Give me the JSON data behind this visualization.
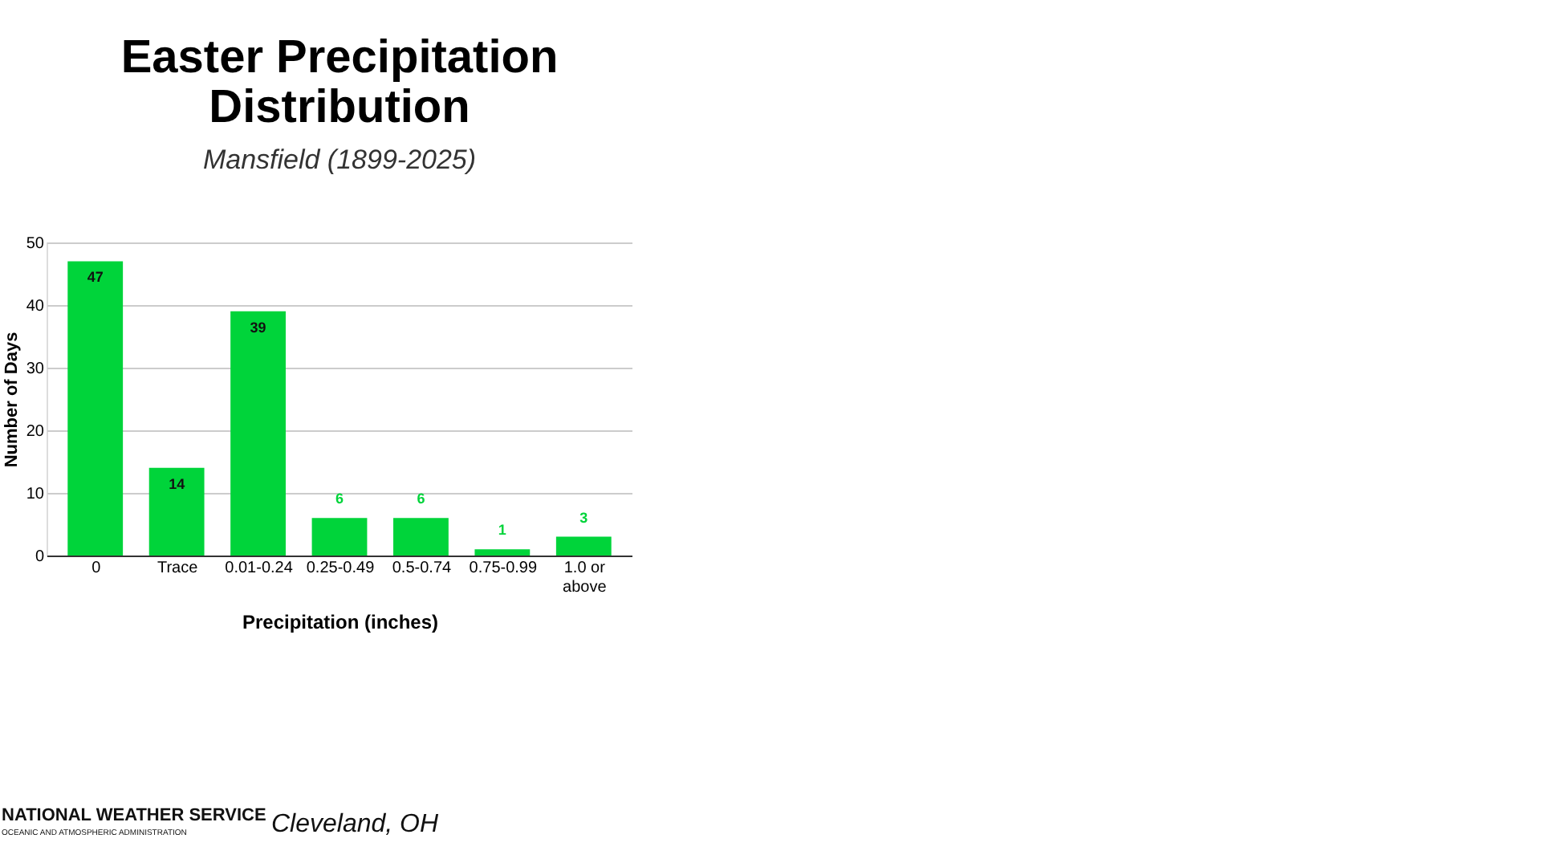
{
  "chart_data": {
    "type": "bar",
    "title": [
      "Easter Precipitation",
      "Distribution"
    ],
    "subtitle": "Mansfield (1899-2025)",
    "xlabel": "Precipitation (inches)",
    "ylabel": "Number of Days",
    "categories": [
      "0",
      "Trace",
      "0.01-0.24",
      "0.25-0.49",
      "0.5-0.74",
      "0.75-0.99",
      "1.0 or above"
    ],
    "values": [
      47,
      14,
      39,
      6,
      6,
      1,
      3
    ],
    "color": "#00d43a",
    "ylim": [
      0,
      50
    ],
    "yticks": [
      0,
      10,
      20,
      30,
      40,
      50
    ],
    "grid": "y",
    "data_labels": true,
    "annotations": [
      "NATIONAL WEATHER SERVICE",
      "OCEANIC AND ATMOSPHERIC ADMINISTRATION",
      "Cleveland, OH"
    ]
  }
}
